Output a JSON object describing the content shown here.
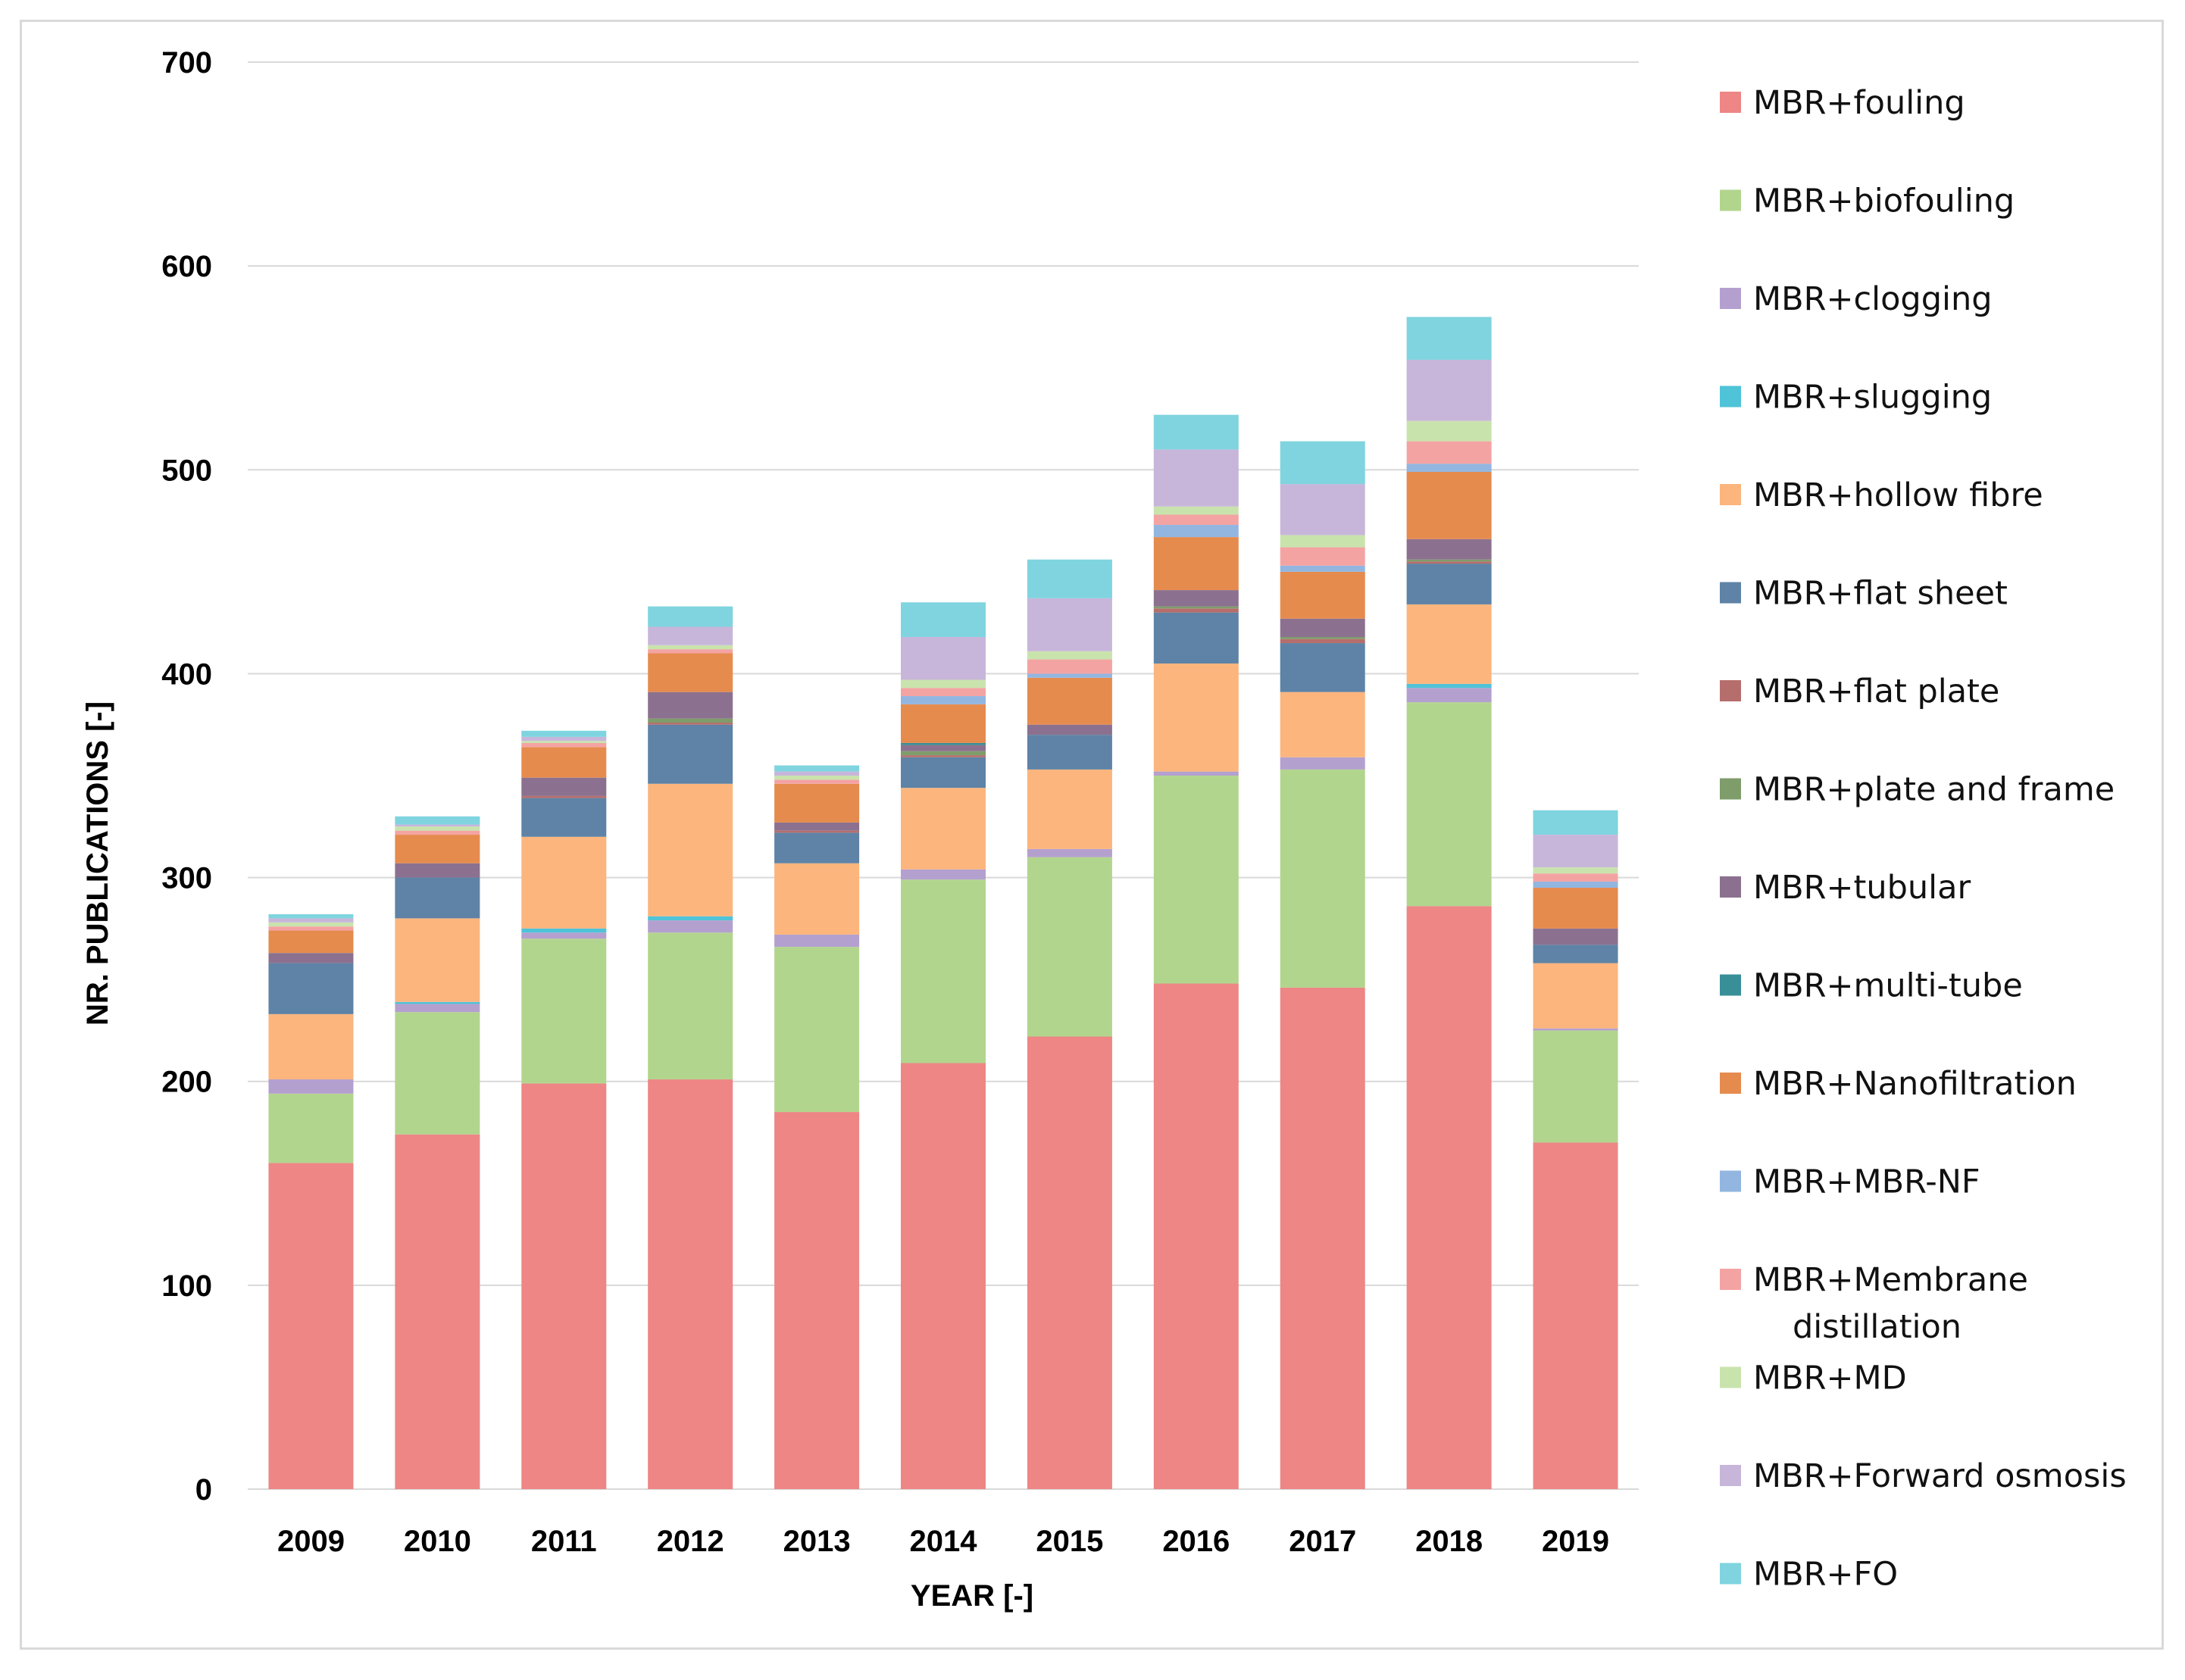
{
  "chart_data": {
    "type": "bar",
    "stacked": true,
    "xlabel": "YEAR [-]",
    "ylabel": "NR. PUBLICATIONS [-]",
    "ylim": [
      0,
      700
    ],
    "yticks": [
      0,
      100,
      200,
      300,
      400,
      500,
      600,
      700
    ],
    "grid": true,
    "legend_position": "right",
    "categories": [
      "2009",
      "2010",
      "2011",
      "2012",
      "2013",
      "2014",
      "2015",
      "2016",
      "2017",
      "2018",
      "2019"
    ],
    "series": [
      {
        "name": "MBR+fouling",
        "color": "#ed8685",
        "values": [
          160,
          174,
          199,
          201,
          185,
          209,
          222,
          248,
          246,
          286,
          170
        ]
      },
      {
        "name": "MBR+biofouling",
        "color": "#b2d58e",
        "values": [
          34,
          60,
          71,
          72,
          81,
          90,
          88,
          102,
          107,
          100,
          55
        ]
      },
      {
        "name": "MBR+clogging",
        "color": "#b4a0cf",
        "values": [
          7,
          4,
          3,
          6,
          6,
          5,
          4,
          2,
          6,
          7,
          1
        ]
      },
      {
        "name": "MBR+slugging",
        "color": "#4fc3d8",
        "values": [
          0,
          1,
          2,
          2,
          0,
          0,
          0,
          0,
          0,
          2,
          0
        ]
      },
      {
        "name": "MBR+hollow fibre",
        "color": "#fbb57d",
        "values": [
          32,
          41,
          45,
          65,
          35,
          40,
          39,
          53,
          32,
          39,
          32
        ]
      },
      {
        "name": "MBR+flat sheet",
        "color": "#5e83a6",
        "values": [
          25,
          20,
          19,
          29,
          15,
          15,
          17,
          25,
          24,
          20,
          9
        ]
      },
      {
        "name": "MBR+flat plate",
        "color": "#b66e6c",
        "values": [
          0,
          0,
          1,
          1,
          1,
          1,
          0,
          2,
          2,
          1,
          0
        ]
      },
      {
        "name": "MBR+plate and frame",
        "color": "#7f9c6b",
        "values": [
          0,
          0,
          0,
          2,
          0,
          2,
          0,
          1,
          1,
          1,
          0
        ]
      },
      {
        "name": "MBR+tubular",
        "color": "#8b718f",
        "values": [
          5,
          7,
          9,
          13,
          4,
          3,
          5,
          8,
          9,
          10,
          8
        ]
      },
      {
        "name": "MBR+multi-tube",
        "color": "#388f98",
        "values": [
          0,
          0,
          0,
          0,
          0,
          1,
          0,
          0,
          0,
          0,
          0
        ]
      },
      {
        "name": "MBR+Nanofiltration",
        "color": "#e58b4e",
        "values": [
          11,
          14,
          15,
          19,
          19,
          19,
          23,
          26,
          23,
          33,
          20
        ]
      },
      {
        "name": "MBR+MBR-NF",
        "color": "#92b6e0",
        "values": [
          0,
          0,
          0,
          0,
          0,
          4,
          2,
          6,
          3,
          4,
          3
        ]
      },
      {
        "name": "MBR+Membrane distillation",
        "color": "#f4a3a3",
        "values": [
          2,
          2,
          2,
          2,
          2,
          4,
          7,
          5,
          9,
          11,
          4
        ]
      },
      {
        "name": "MBR+MD",
        "color": "#c9e3ad",
        "values": [
          2,
          2,
          1,
          2,
          2,
          4,
          4,
          4,
          6,
          10,
          3
        ]
      },
      {
        "name": "MBR+Forward osmosis",
        "color": "#c7b6da",
        "values": [
          2,
          1,
          2,
          9,
          2,
          21,
          26,
          28,
          25,
          30,
          16
        ]
      },
      {
        "name": "MBR+FO",
        "color": "#7fd4df",
        "values": [
          2,
          4,
          3,
          10,
          3,
          17,
          19,
          17,
          21,
          21,
          12
        ]
      }
    ]
  }
}
